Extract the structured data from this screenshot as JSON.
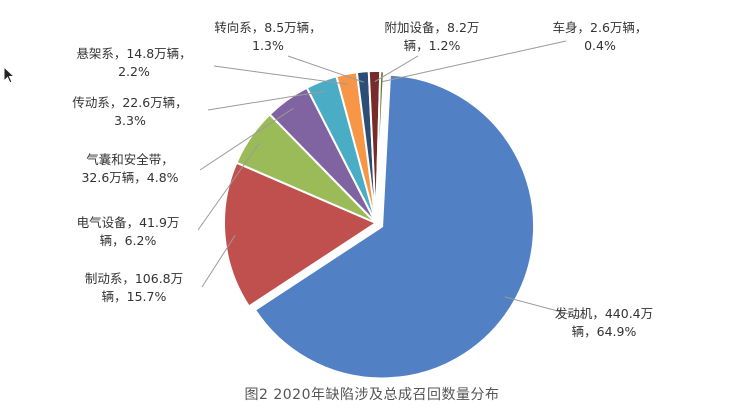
{
  "caption": "图2  2020年缺陷涉及总成召回数量分布",
  "chart_data": {
    "type": "pie",
    "title": "",
    "unit": "万辆",
    "slices": [
      {
        "name": "发动机",
        "value": 440.4,
        "percent": "64.9%",
        "color": "#5181C4",
        "label_lines": [
          "发动机，440.4万",
          "辆，64.9%"
        ]
      },
      {
        "name": "制动系",
        "value": 106.8,
        "percent": "15.7%",
        "color": "#C0504D",
        "label_lines": [
          "制动系，106.8万",
          "辆，15.7%"
        ]
      },
      {
        "name": "电气设备",
        "value": 41.9,
        "percent": "6.2%",
        "color": "#9BBB59",
        "label_lines": [
          "电气设备，41.9万",
          "辆，6.2%"
        ]
      },
      {
        "name": "气囊和安全带",
        "value": 32.6,
        "percent": "4.8%",
        "color": "#8064A2",
        "label_lines": [
          "气囊和安全带，",
          "32.6万辆，4.8%"
        ]
      },
      {
        "name": "传动系",
        "value": 22.6,
        "percent": "3.3%",
        "color": "#4BACC6",
        "label_lines": [
          "传动系，22.6万辆，",
          "3.3%"
        ]
      },
      {
        "name": "悬架系",
        "value": 14.8,
        "percent": "2.2%",
        "color": "#F79646",
        "label_lines": [
          "悬架系，14.8万辆，",
          "2.2%"
        ]
      },
      {
        "name": "转向系",
        "value": 8.5,
        "percent": "1.3%",
        "color": "#2C4D75",
        "label_lines": [
          "转向系，8.5万辆，",
          "1.3%"
        ]
      },
      {
        "name": "附加设备",
        "value": 8.2,
        "percent": "1.2%",
        "color": "#772C2A",
        "label_lines": [
          "附加设备，8.2万",
          "辆，1.2%"
        ]
      },
      {
        "name": "车身",
        "value": 2.6,
        "percent": "0.4%",
        "color": "#5F7530",
        "label_lines": [
          "车身，2.6万辆，",
          "0.4%"
        ]
      }
    ]
  }
}
